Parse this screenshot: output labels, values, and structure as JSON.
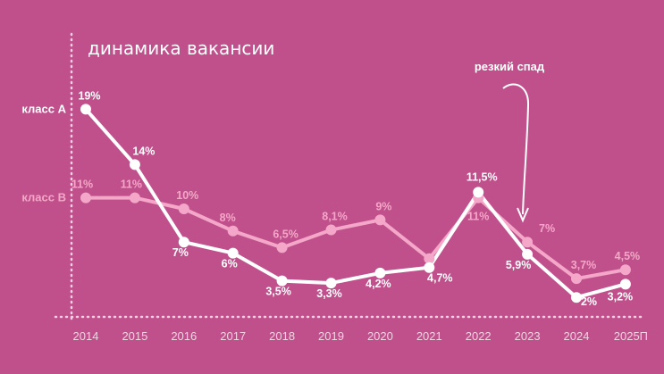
{
  "colors": {
    "background": "#c0508c",
    "class_a": "#ffffff",
    "class_b": "#f4a7c8",
    "axis": "#f1d3e2"
  },
  "chart_data": {
    "type": "line",
    "title": "динамика вакансии",
    "categories": [
      "2014",
      "2015",
      "2016",
      "2017",
      "2018",
      "2019",
      "2020",
      "2021",
      "2022",
      "2023",
      "2024",
      "2025П"
    ],
    "ylim": [
      0,
      20
    ],
    "grid": false,
    "series": [
      {
        "name": "класс А",
        "values": [
          19,
          14,
          7,
          6,
          3.5,
          3.3,
          4.2,
          4.7,
          11.5,
          5.9,
          2,
          3.2
        ],
        "labels": [
          "19%",
          "14%",
          "7%",
          "6%",
          "3,5%",
          "3,3%",
          "4,2%",
          "4,7%",
          "11,5%",
          "5,9%",
          "2%",
          "3,2%"
        ]
      },
      {
        "name": "класс В",
        "values": [
          11,
          11,
          10,
          8,
          6.5,
          8.1,
          9,
          5.5,
          11,
          7,
          3.7,
          4.5
        ],
        "labels": [
          "11%",
          "11%",
          "10%",
          "8%",
          "6,5%",
          "8,1%",
          "9%",
          "",
          "11%",
          "7%",
          "3,7%",
          "4,5%"
        ]
      }
    ],
    "annotation": "резкий спад"
  }
}
